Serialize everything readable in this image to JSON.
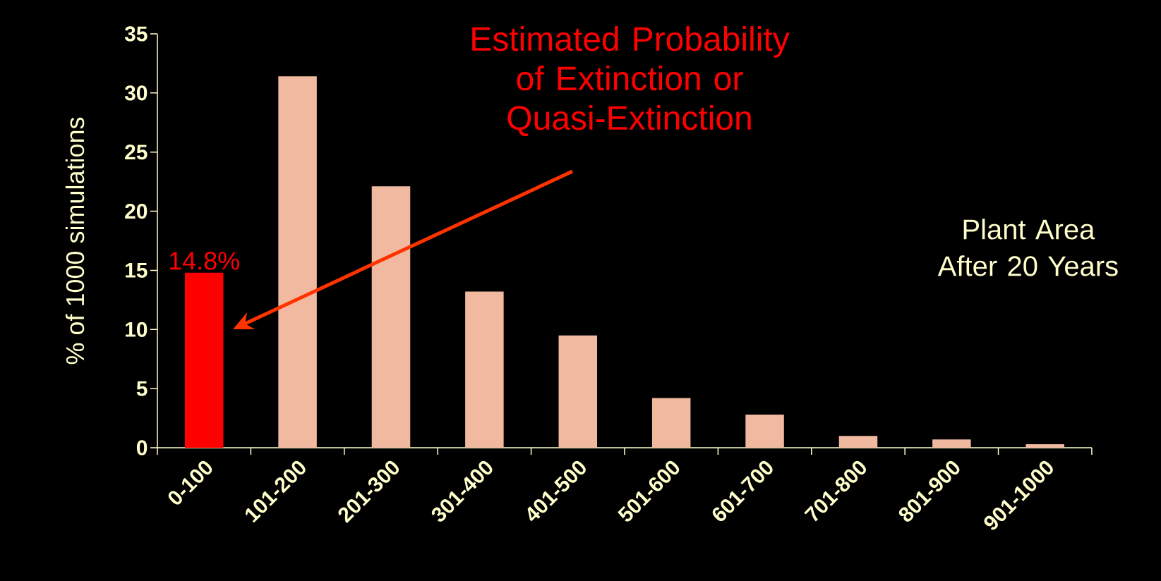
{
  "chart_data": {
    "type": "bar",
    "categories": [
      "0-100",
      "101-200",
      "201-300",
      "301-400",
      "401-500",
      "501-600",
      "601-700",
      "701-800",
      "801-900",
      "901-1000"
    ],
    "values": [
      14.8,
      31.4,
      22.1,
      13.2,
      9.5,
      4.2,
      2.8,
      1.0,
      0.7,
      0.3
    ],
    "colors": [
      "#ff0000",
      "#f0b9a0",
      "#f0b9a0",
      "#f0b9a0",
      "#f0b9a0",
      "#f0b9a0",
      "#f0b9a0",
      "#f0b9a0",
      "#f0b9a0",
      "#f0b9a0"
    ],
    "value_labels": [
      "14.8%",
      null,
      null,
      null,
      null,
      null,
      null,
      null,
      null,
      null
    ],
    "ylabel": "% of 1000 simulations",
    "xlabel": "Plant Area After 20 Years",
    "ylim": [
      0,
      35
    ],
    "yticks": [
      0,
      5,
      10,
      15,
      20,
      25,
      30,
      35
    ],
    "annotations": [
      "Estimated Probability of Extinction or Quasi-Extinction"
    ]
  }
}
